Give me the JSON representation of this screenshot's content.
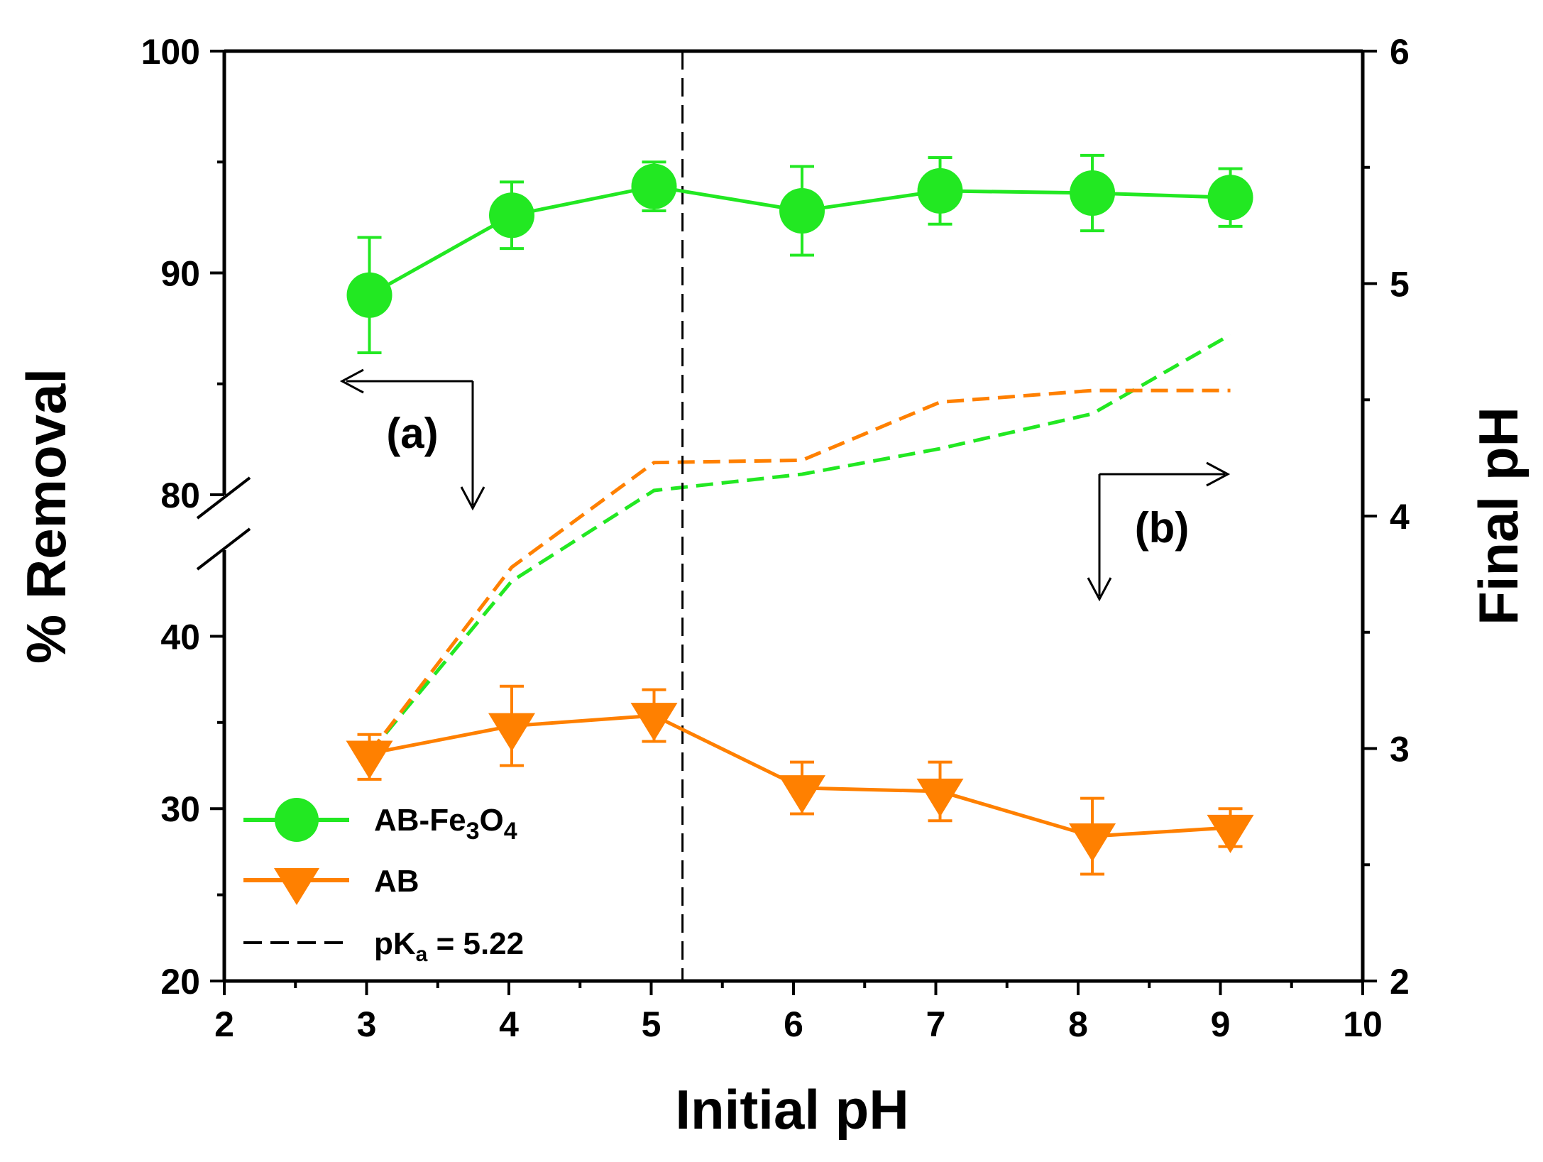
{
  "chart_data": {
    "type": "line",
    "xlabel": "Initial pH",
    "ylabel_left": "% Removal",
    "ylabel_right": "Final pH",
    "xlim": [
      2,
      10
    ],
    "xticks": [
      "2",
      "3",
      "4",
      "5",
      "6",
      "7",
      "8",
      "9",
      "10"
    ],
    "ylim_left_lower": [
      20,
      45
    ],
    "ylim_left_upper": [
      80,
      100
    ],
    "yticks_left_lower": [
      "20",
      "30",
      "40"
    ],
    "yticks_left_upper": [
      "80",
      "90",
      "100"
    ],
    "ylim_right": [
      2,
      6
    ],
    "yticks_right": [
      "2",
      "3",
      "4",
      "5",
      "6"
    ],
    "series": [
      {
        "name": "AB-Fe3O4",
        "legend_main": "AB-Fe",
        "legend_sub1": "3",
        "legend_mid": "O",
        "legend_sub2": "4",
        "color": "#22e822",
        "axis": "left",
        "x": [
          3.02,
          4.02,
          5.02,
          6.06,
          7.03,
          8.1,
          9.07
        ],
        "y": [
          89.0,
          92.6,
          93.9,
          92.8,
          93.7,
          93.6,
          93.4
        ],
        "yerr": [
          2.6,
          1.5,
          1.1,
          2.0,
          1.5,
          1.7,
          1.3
        ]
      },
      {
        "name": "AB",
        "legend_main": "AB",
        "color": "#ff8000",
        "axis": "left",
        "x": [
          3.02,
          4.02,
          5.02,
          6.06,
          7.03,
          8.1,
          9.07
        ],
        "y": [
          33.2,
          34.8,
          35.4,
          31.2,
          31.0,
          28.4,
          28.9
        ],
        "yerr_up": [
          1.1,
          2.3,
          1.5,
          1.5,
          1.7,
          2.2,
          1.1
        ],
        "yerr_down": [
          1.5,
          2.3,
          1.5,
          1.5,
          1.7,
          2.2,
          1.1
        ]
      },
      {
        "name": "AB-Fe3O4 final pH",
        "color": "#22e822",
        "axis": "right",
        "style": "dashed",
        "x": [
          3.02,
          4.02,
          5.02,
          6.06,
          7.03,
          8.1,
          9.07
        ],
        "y": [
          2.98,
          3.72,
          4.11,
          4.18,
          4.29,
          4.44,
          4.78
        ]
      },
      {
        "name": "AB final pH",
        "color": "#ff8000",
        "axis": "right",
        "style": "dashed",
        "x": [
          3.02,
          4.02,
          5.02,
          6.06,
          7.03,
          8.1,
          9.07
        ],
        "y": [
          2.98,
          3.78,
          4.23,
          4.24,
          4.49,
          4.54,
          4.54
        ]
      }
    ],
    "pka_line": {
      "label_main": "pK",
      "label_sub": "a",
      "label_value": " = 5.22",
      "x": 5.22,
      "color": "#000000"
    },
    "annotations": [
      {
        "text": "(a)",
        "x": 3.2,
        "y_left": 84.2
      },
      {
        "text": "(b)",
        "x": 8.55,
        "y_right": 3.93
      }
    ],
    "legend_position": "bottom-left"
  }
}
